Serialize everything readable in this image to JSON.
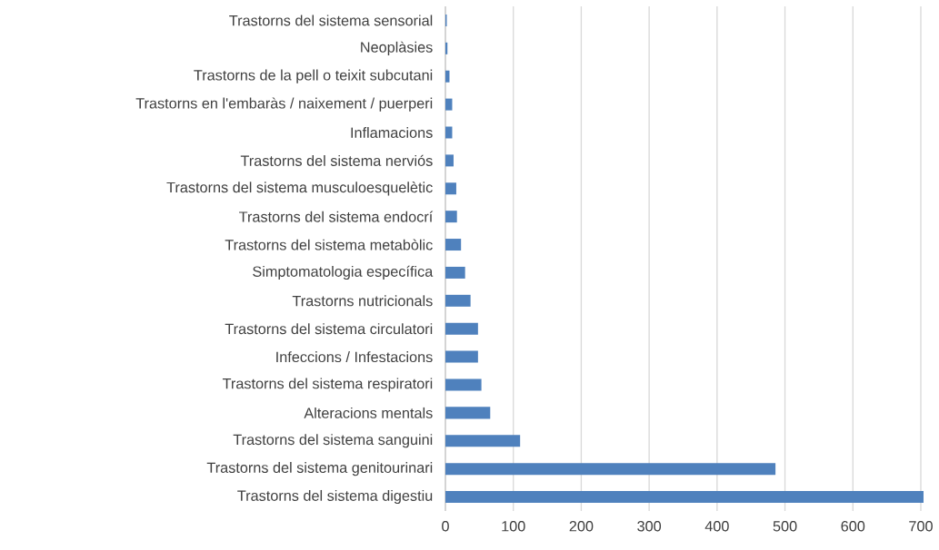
{
  "chart_data": {
    "type": "bar",
    "orientation": "horizontal",
    "categories": [
      "Trastorns del sistema sensorial",
      "Neoplàsies",
      "Trastorns de la pell o teixit subcutani",
      "Trastorns en l'embaràs / naixement / puerperi",
      "Inflamacions",
      "Trastorns del sistema nerviós",
      "Trastorns del sistema musculoesquelètic",
      "Trastorns del sistema endocrí",
      "Trastorns del sistema metabòlic",
      "Simptomatologia específica",
      "Trastorns nutricionals",
      "Trastorns del sistema circulatori",
      "Infeccions / Infestacions",
      "Trastorns del sistema respiratori",
      "Alteracions mentals",
      "Trastorns del sistema sanguini",
      "Trastorns del sistema genitourinari",
      "Trastorns del sistema digestiu"
    ],
    "values": [
      2,
      3,
      6,
      10,
      10,
      12,
      16,
      17,
      23,
      29,
      37,
      48,
      48,
      53,
      66,
      110,
      486,
      704
    ],
    "color": "#4f81bd",
    "xlim": [
      0,
      705
    ],
    "xticks": [
      0,
      100,
      200,
      300,
      400,
      500,
      600,
      700
    ],
    "grid": "x"
  }
}
